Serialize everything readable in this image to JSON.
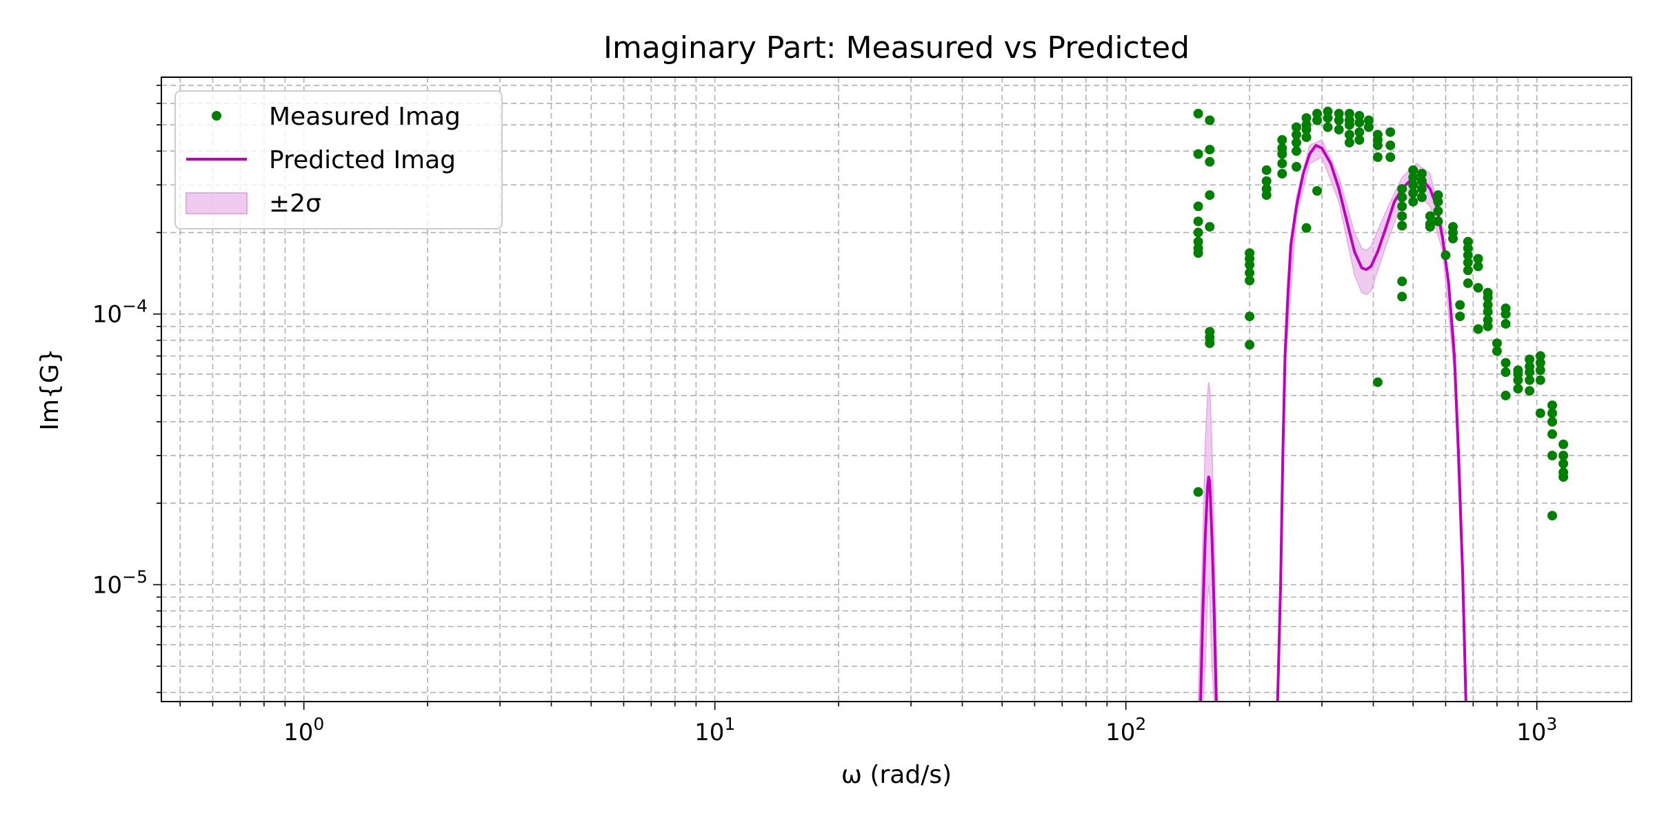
{
  "chart_data": {
    "type": "scatter",
    "title": "Imaginary Part: Measured vs Predicted",
    "xlabel": "ω (rad/s)",
    "ylabel": "Im{G}",
    "xscale": "log",
    "yscale": "log",
    "xlim": [
      0.45,
      1700
    ],
    "ylim": [
      3.7e-06,
      0.00075
    ],
    "grid": true,
    "legend_position": "upper-left",
    "x_ticks": [
      {
        "value": 1,
        "base": "10",
        "exp": "0"
      },
      {
        "value": 10,
        "base": "10",
        "exp": "1"
      },
      {
        "value": 100,
        "base": "10",
        "exp": "2"
      },
      {
        "value": 1000,
        "base": "10",
        "exp": "3"
      }
    ],
    "y_ticks": [
      {
        "value": 1e-05,
        "base": "10",
        "exp": "−5"
      },
      {
        "value": 0.0001,
        "base": "10",
        "exp": "−4"
      }
    ],
    "colors": {
      "measured": "#008000",
      "predicted": "#bf00bf",
      "band": "#e6a8e6"
    },
    "legend": [
      {
        "label": "Measured Imag",
        "kind": "marker"
      },
      {
        "label": "Predicted Imag",
        "kind": "line"
      },
      {
        "label": "±2σ",
        "kind": "patch"
      }
    ],
    "series": [
      {
        "name": "Measured Imag",
        "kind": "scatter",
        "points": [
          [
            150,
            0.00055
          ],
          [
            150,
            0.00039
          ],
          [
            150,
            0.00025
          ],
          [
            150,
            0.00022
          ],
          [
            150,
            0.0002
          ],
          [
            150,
            0.000185
          ],
          [
            150,
            0.000175
          ],
          [
            150,
            0.000168
          ],
          [
            150,
            2.2e-05
          ],
          [
            160,
            0.00052
          ],
          [
            160,
            0.000405
          ],
          [
            160,
            0.000365
          ],
          [
            160,
            0.000275
          ],
          [
            160,
            0.00021
          ],
          [
            160,
            8.6e-05
          ],
          [
            160,
            8.2e-05
          ],
          [
            160,
            7.8e-05
          ],
          [
            200,
            0.000168
          ],
          [
            200,
            0.00016
          ],
          [
            200,
            0.000152
          ],
          [
            200,
            0.000142
          ],
          [
            200,
            0.000133
          ],
          [
            200,
            9.8e-05
          ],
          [
            200,
            7.7e-05
          ],
          [
            220,
            0.00034
          ],
          [
            220,
            0.00031
          ],
          [
            220,
            0.00029
          ],
          [
            220,
            0.000275
          ],
          [
            240,
            0.00044
          ],
          [
            240,
            0.00041
          ],
          [
            240,
            0.00039
          ],
          [
            240,
            0.00036
          ],
          [
            240,
            0.00033
          ],
          [
            260,
            0.00049
          ],
          [
            260,
            0.00046
          ],
          [
            260,
            0.00043
          ],
          [
            260,
            0.0004
          ],
          [
            260,
            0.00035
          ],
          [
            275,
            0.00053
          ],
          [
            275,
            0.0005
          ],
          [
            275,
            0.00048
          ],
          [
            275,
            0.00045
          ],
          [
            275,
            0.000208
          ],
          [
            292,
            0.00055
          ],
          [
            292,
            0.00052
          ],
          [
            292,
            0.000285
          ],
          [
            310,
            0.00056
          ],
          [
            310,
            0.00053
          ],
          [
            310,
            0.00049
          ],
          [
            330,
            0.00055
          ],
          [
            330,
            0.00052
          ],
          [
            330,
            0.00048
          ],
          [
            350,
            0.00055
          ],
          [
            350,
            0.00052
          ],
          [
            350,
            0.0005
          ],
          [
            350,
            0.00046
          ],
          [
            350,
            0.00043
          ],
          [
            370,
            0.00054
          ],
          [
            370,
            0.00051
          ],
          [
            370,
            0.00047
          ],
          [
            370,
            0.00044
          ],
          [
            390,
            0.00052
          ],
          [
            390,
            0.00049
          ],
          [
            410,
            0.00046
          ],
          [
            410,
            0.00044
          ],
          [
            410,
            0.00042
          ],
          [
            410,
            0.00038
          ],
          [
            410,
            5.6e-05
          ],
          [
            440,
            0.00047
          ],
          [
            440,
            0.00042
          ],
          [
            440,
            0.00038
          ],
          [
            470,
            0.00029
          ],
          [
            470,
            0.00027
          ],
          [
            470,
            0.00025
          ],
          [
            470,
            0.00023
          ],
          [
            470,
            0.000212
          ],
          [
            470,
            0.000132
          ],
          [
            470,
            0.000116
          ],
          [
            500,
            0.00034
          ],
          [
            500,
            0.00032
          ],
          [
            500,
            0.0003
          ],
          [
            500,
            0.00028
          ],
          [
            500,
            0.00026
          ],
          [
            525,
            0.00033
          ],
          [
            525,
            0.00031
          ],
          [
            525,
            0.00029
          ],
          [
            525,
            0.00027
          ],
          [
            550,
            0.00023
          ],
          [
            550,
            0.000215
          ],
          [
            550,
            0.00021
          ],
          [
            575,
            0.000275
          ],
          [
            575,
            0.00026
          ],
          [
            575,
            0.00024
          ],
          [
            575,
            0.00022
          ],
          [
            600,
            0.000165
          ],
          [
            625,
            0.00021
          ],
          [
            625,
            0.0002
          ],
          [
            625,
            0.00019
          ],
          [
            650,
            0.000108
          ],
          [
            650,
            9.8e-05
          ],
          [
            680,
            0.000185
          ],
          [
            680,
            0.000175
          ],
          [
            680,
            0.000165
          ],
          [
            680,
            0.000155
          ],
          [
            680,
            0.000145
          ],
          [
            680,
            0.00013
          ],
          [
            720,
            0.00016
          ],
          [
            720,
            0.00015
          ],
          [
            720,
            0.000125
          ],
          [
            720,
            8.8e-05
          ],
          [
            760,
            0.00012
          ],
          [
            760,
            0.000115
          ],
          [
            760,
            0.000108
          ],
          [
            760,
            0.000102
          ],
          [
            760,
            9.5e-05
          ],
          [
            760,
            9e-05
          ],
          [
            800,
            7.8e-05
          ],
          [
            800,
            7.3e-05
          ],
          [
            840,
            0.000105
          ],
          [
            840,
            0.0001
          ],
          [
            840,
            9.2e-05
          ],
          [
            840,
            6.6e-05
          ],
          [
            840,
            6.1e-05
          ],
          [
            840,
            5e-05
          ],
          [
            900,
            6.2e-05
          ],
          [
            900,
            6e-05
          ],
          [
            900,
            5.7e-05
          ],
          [
            900,
            5.3e-05
          ],
          [
            960,
            6.8e-05
          ],
          [
            960,
            6.4e-05
          ],
          [
            960,
            6.1e-05
          ],
          [
            960,
            5.7e-05
          ],
          [
            960,
            5.2e-05
          ],
          [
            1020,
            7e-05
          ],
          [
            1020,
            6.6e-05
          ],
          [
            1020,
            6.2e-05
          ],
          [
            1020,
            5.7e-05
          ],
          [
            1020,
            4.3e-05
          ],
          [
            1090,
            4.6e-05
          ],
          [
            1090,
            4.3e-05
          ],
          [
            1090,
            4e-05
          ],
          [
            1090,
            3.6e-05
          ],
          [
            1090,
            3e-05
          ],
          [
            1090,
            1.8e-05
          ],
          [
            1160,
            3.3e-05
          ],
          [
            1160,
            3e-05
          ],
          [
            1160,
            2.8e-05
          ],
          [
            1160,
            2.6e-05
          ],
          [
            1160,
            2.5e-05
          ]
        ]
      },
      {
        "name": "Predicted Imag",
        "kind": "line",
        "segments": [
          [
            [
              152,
              3.7e-06
            ],
            [
              154,
              8e-06
            ],
            [
              156,
              1.5e-05
            ],
            [
              158,
              2.3e-05
            ],
            [
              159,
              2.5e-05
            ],
            [
              160,
              2.4e-05
            ],
            [
              162,
              1.5e-05
            ],
            [
              164,
              8e-06
            ],
            [
              166,
              3.7e-06
            ]
          ],
          [
            [
              234,
              3.7e-06
            ],
            [
              238,
              1e-05
            ],
            [
              241,
              3e-05
            ],
            [
              244,
              7e-05
            ],
            [
              248,
              0.00012
            ],
            [
              252,
              0.00018
            ],
            [
              260,
              0.00025
            ],
            [
              270,
              0.00033
            ],
            [
              280,
              0.00039
            ],
            [
              290,
              0.00042
            ],
            [
              300,
              0.00041
            ],
            [
              315,
              0.00036
            ],
            [
              330,
              0.00029
            ],
            [
              345,
              0.00022
            ],
            [
              360,
              0.00017
            ],
            [
              375,
              0.000148
            ],
            [
              385,
              0.000146
            ],
            [
              395,
              0.00015
            ],
            [
              410,
              0.00017
            ],
            [
              430,
              0.00021
            ],
            [
              450,
              0.00026
            ],
            [
              470,
              0.00029
            ],
            [
              490,
              0.00031
            ],
            [
              510,
              0.000318
            ],
            [
              530,
              0.00031
            ],
            [
              550,
              0.00029
            ],
            [
              570,
              0.00025
            ],
            [
              590,
              0.00019
            ],
            [
              610,
              0.00013
            ],
            [
              630,
              7e-05
            ],
            [
              645,
              3e-05
            ],
            [
              660,
              1.1e-05
            ],
            [
              672,
              3.7e-06
            ]
          ]
        ]
      },
      {
        "name": "±2σ",
        "kind": "band",
        "segments": [
          {
            "x": [
              150,
              154,
              156,
              158,
              159,
              160,
              162,
              164,
              167
            ],
            "upper": [
              3.7e-06,
              1.5e-05,
              3.3e-05,
              5e-05,
              5.6e-05,
              5.3e-05,
              3.3e-05,
              1.5e-05,
              3.7e-06
            ],
            "lower": [
              3.7e-06,
              3.7e-06,
              5e-06,
              9e-06,
              1e-05,
              9e-06,
              5e-06,
              3.7e-06,
              3.7e-06
            ]
          },
          {
            "x": [
              234,
              244,
              260,
              280,
              300,
              330,
              360,
              375,
              385,
              395,
              430,
              470,
              510,
              550,
              590,
              630,
              660,
              672
            ],
            "upper": [
              3.7e-06,
              7.6e-05,
              0.00027,
              0.00042,
              0.00044,
              0.00032,
              0.0002,
              0.000175,
              0.000172,
              0.000178,
              0.00024,
              0.00032,
              0.00036,
              0.00033,
              0.00021,
              8e-05,
              1.3e-05,
              3.7e-06
            ],
            "lower": [
              3.7e-06,
              6.4e-05,
              0.00023,
              0.00036,
              0.00038,
              0.00026,
              0.00014,
              0.00012,
              0.000118,
              0.000122,
              0.00018,
              0.00026,
              0.00028,
              0.00025,
              0.00017,
              6e-05,
              9e-06,
              3.7e-06
            ]
          }
        ]
      }
    ]
  }
}
